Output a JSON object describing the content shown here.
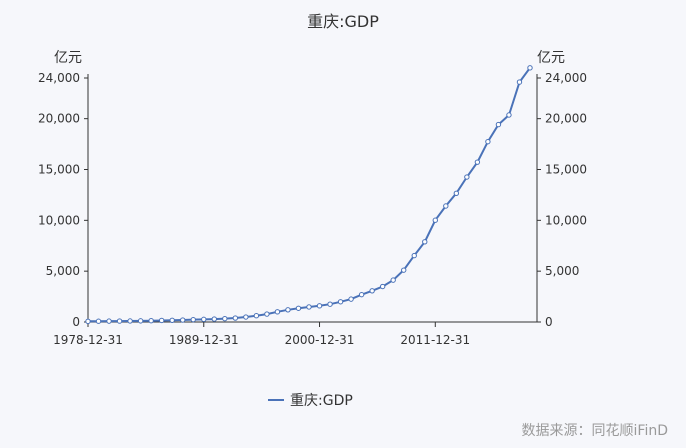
{
  "chart_data": {
    "type": "line",
    "title": "重庆:GDP",
    "unit_left": "亿元",
    "unit_right": "亿元",
    "ylim": [
      0,
      24000
    ],
    "y_ticks": [
      "0",
      "5,000",
      "10,000",
      "15,000",
      "20,000",
      "24,000"
    ],
    "y_tick_values": [
      0,
      5000,
      10000,
      15000,
      20000,
      24000
    ],
    "x_ticks": [
      "1978-12-31",
      "1989-12-31",
      "2000-12-31",
      "2011-12-31"
    ],
    "x_range": [
      1978,
      2020
    ],
    "series": [
      {
        "name": "重庆:GDP",
        "color": "#4a72b8",
        "x": [
          1978,
          1979,
          1980,
          1981,
          1982,
          1983,
          1984,
          1985,
          1986,
          1987,
          1988,
          1989,
          1990,
          1991,
          1992,
          1993,
          1994,
          1995,
          1996,
          1997,
          1998,
          1999,
          2000,
          2001,
          2002,
          2003,
          2004,
          2005,
          2006,
          2007,
          2008,
          2009,
          2010,
          2011,
          2012,
          2013,
          2014,
          2015,
          2016,
          2017,
          2018,
          2019,
          2020
        ],
        "values": [
          67,
          76,
          86,
          91,
          101,
          111,
          128,
          152,
          168,
          195,
          232,
          260,
          290,
          330,
          390,
          490,
          620,
          780,
          1000,
          1200,
          1350,
          1480,
          1590,
          1750,
          1990,
          2250,
          2690,
          3070,
          3490,
          4120,
          5100,
          6530,
          7890,
          10010,
          11410,
          12660,
          14260,
          15720,
          17740,
          19420,
          20360,
          23600,
          25000
        ]
      }
    ]
  },
  "legend": {
    "label": "重庆:GDP"
  },
  "source": "数据来源：同花顺iFinD"
}
